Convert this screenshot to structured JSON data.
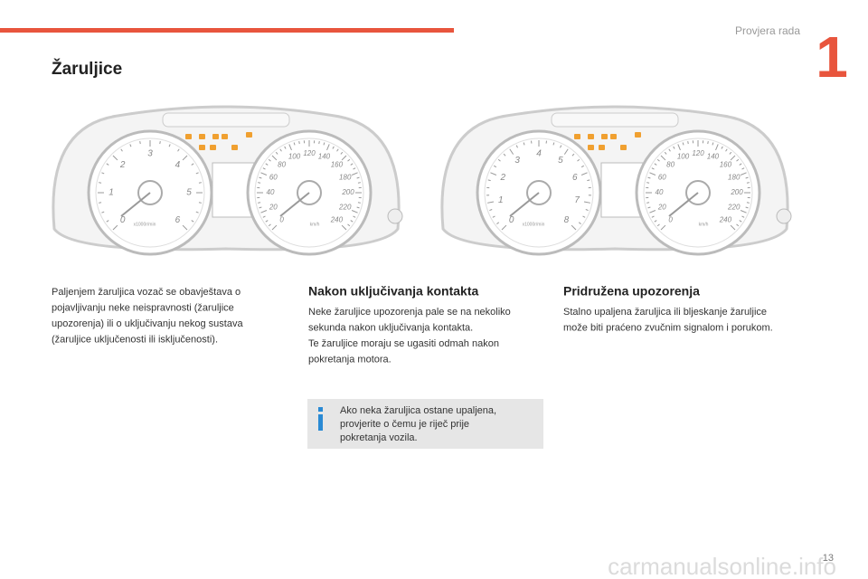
{
  "header": {
    "section": "Provjera rada",
    "chapter": "1"
  },
  "title": "Žaruljice",
  "illustrations": [
    {
      "tachometer_labels": [
        0,
        1,
        2,
        3,
        4,
        5,
        6
      ],
      "rpm_unit": "x1000r/min",
      "speedometer_labels": [
        0,
        20,
        40,
        60,
        80,
        100,
        120,
        140,
        160,
        180,
        200,
        220,
        240
      ],
      "speed_unit": "km/h"
    },
    {
      "tachometer_labels": [
        0,
        1,
        2,
        3,
        4,
        5,
        6,
        7,
        8
      ],
      "rpm_unit": "x1000r/min",
      "speedometer_labels": [
        0,
        20,
        40,
        60,
        80,
        100,
        120,
        140,
        160,
        180,
        200,
        220,
        240
      ],
      "speed_unit": "km/h"
    }
  ],
  "intro": {
    "lines": [
      "Paljenjem žaruljica vozač se obavještava o",
      "pojavljivanju neke neispravnosti (žaruljice",
      "upozorenja) ili o uključivanju nekog sustava",
      "(žaruljice uključenosti ili isključenosti)."
    ]
  },
  "sections": [
    {
      "heading": "Nakon uključivanja kontakta",
      "lines": [
        "Neke žaruljice upozorenja pale se na nekoliko",
        "sekunda nakon uključivanja kontakta.",
        "Te žaruljice moraju se ugasiti odmah nakon",
        "pokretanja motora."
      ]
    },
    {
      "heading": "Pridružena upozorenja",
      "lines": [
        "Stalno upaljena žaruljica ili bljeskanje žaruljice",
        "može biti praćeno zvučnim signalom i porukom."
      ]
    }
  ],
  "note": {
    "lines": [
      "Ako neka žaruljica ostane upaljena,",
      "provjerite o čemu je riječ prije",
      "pokretanja vozila."
    ]
  },
  "page_number": "13",
  "watermark": "carmanualsonline.info"
}
